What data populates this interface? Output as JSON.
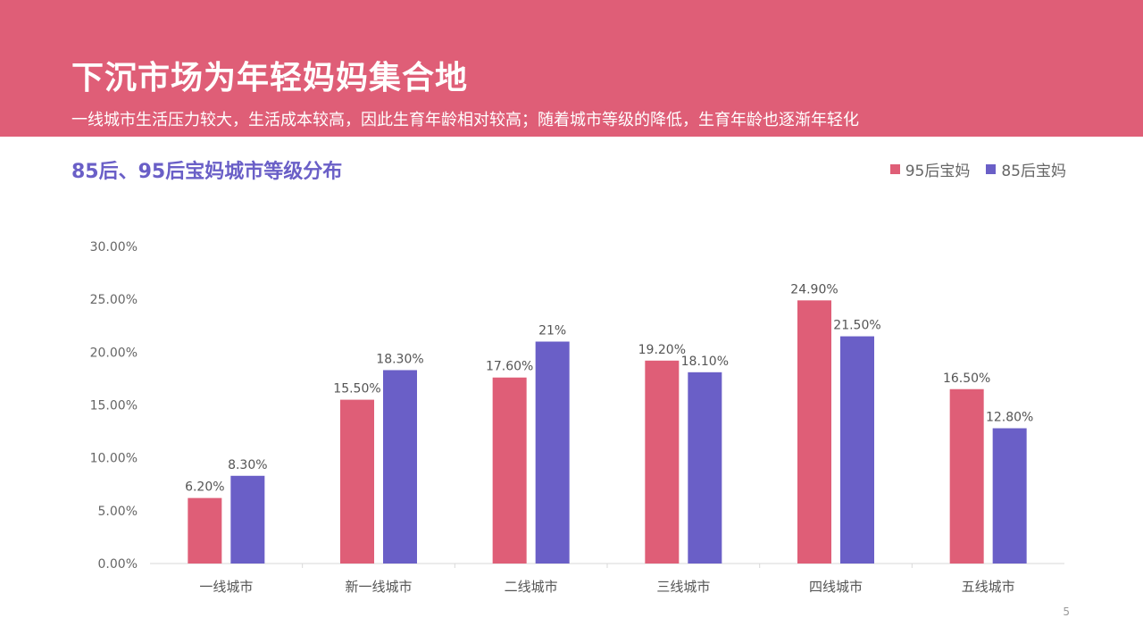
{
  "header": {
    "title": "下沉市场为年轻妈妈集合地",
    "subtitle": "一线城市生活压力较大，生活成本较高，因此生育年龄相对较高；随着城市等级的降低，生育年龄也逐渐年轻化"
  },
  "page_number": "5",
  "colors": {
    "banner": "#df5e77",
    "series_95": "#df5e77",
    "series_85": "#6a5fc7",
    "chart_title": "#6a5fc7"
  },
  "chart_data": {
    "type": "bar",
    "title": "85后、95后宝妈城市等级分布",
    "xlabel": "",
    "ylabel": "",
    "ylim": [
      0,
      30
    ],
    "yticks": [
      "0.00%",
      "5.00%",
      "10.00%",
      "15.00%",
      "20.00%",
      "25.00%",
      "30.00%"
    ],
    "categories": [
      "一线城市",
      "新一线城市",
      "二线城市",
      "三线城市",
      "四线城市",
      "五线城市"
    ],
    "series": [
      {
        "name": "95后宝妈",
        "values": [
          6.2,
          15.5,
          17.6,
          19.2,
          24.9,
          16.5
        ],
        "labels": [
          "6.20%",
          "15.50%",
          "17.60%",
          "19.20%",
          "24.90%",
          "16.50%"
        ]
      },
      {
        "name": "85后宝妈",
        "values": [
          8.3,
          18.3,
          21,
          18.1,
          21.5,
          12.8
        ],
        "labels": [
          "8.30%",
          "18.30%",
          "21%",
          "18.10%",
          "21.50%",
          "12.80%"
        ]
      }
    ],
    "legend_position": "top-right",
    "grid": false
  }
}
